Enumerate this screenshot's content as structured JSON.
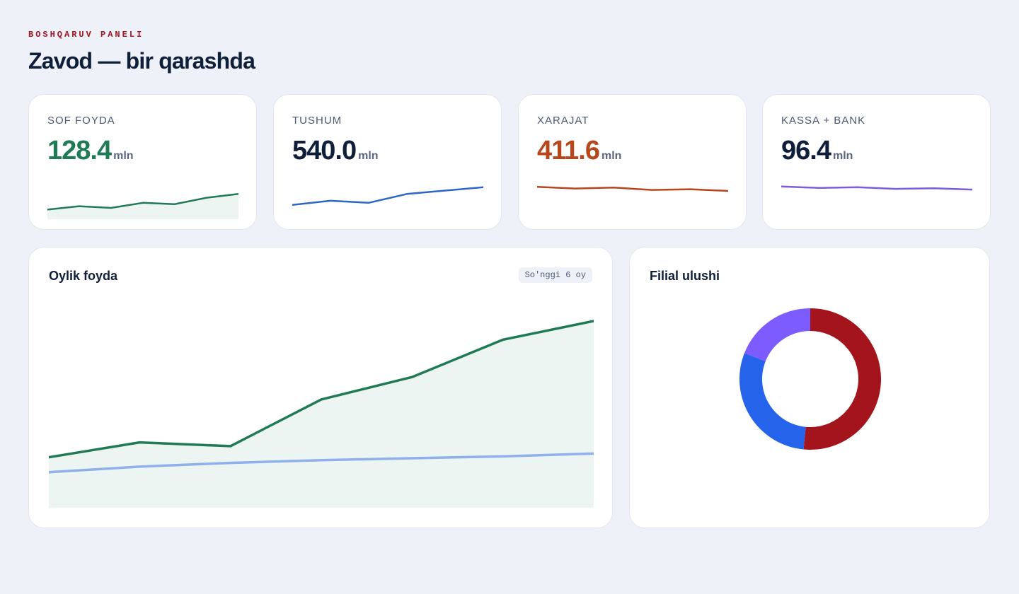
{
  "header": {
    "eyebrow": "BOSHQARUV PANELI",
    "title": "Zavod — bir qarashda"
  },
  "kpis": [
    {
      "label": "SOF FOYDA",
      "value": "128.4",
      "unit": "mln",
      "color": "#1f7a55",
      "fill": true,
      "trend": [
        2,
        3,
        2.5,
        4,
        3.6,
        5.5,
        6.6
      ]
    },
    {
      "label": "TUSHUM",
      "value": "540.0",
      "unit": "mln",
      "color": "#2c66c9",
      "fill": false,
      "trend": [
        3.4,
        4.6,
        4.0,
        6.6,
        7.6,
        8.6
      ]
    },
    {
      "label": "XARAJAT",
      "value": "411.6",
      "unit": "mln",
      "color": "#b8461a",
      "fill": false,
      "trend": [
        8.7,
        8.2,
        8.5,
        7.8,
        8.0,
        7.5
      ]
    },
    {
      "label": "KASSA + BANK",
      "value": "96.4",
      "unit": "mln",
      "color": "#7b5cdb",
      "fill": false,
      "trend": [
        8.8,
        8.4,
        8.6,
        8.1,
        8.3,
        7.9
      ]
    }
  ],
  "kpi_value_colors": [
    "#1f7a55",
    "#0f1f3a",
    "#b8461a",
    "#0f1f3a"
  ],
  "monthly_profit": {
    "title": "Oylik foyda",
    "badge": "So'nggi 6 oy",
    "chart_data": {
      "type": "area",
      "ylim": [
        0,
        100
      ],
      "series": [
        {
          "color": "#1f7a55",
          "fill": true,
          "values": [
            27,
            35,
            33,
            58,
            70,
            90,
            100
          ]
        },
        {
          "color": "#8fb0ea",
          "fill": false,
          "values": [
            19,
            22,
            24,
            25.5,
            26.5,
            27.5,
            29
          ]
        }
      ]
    }
  },
  "branch_share": {
    "title": "Filial ulushi",
    "chart_data": {
      "type": "pie",
      "slices": [
        {
          "value": 51.5,
          "color": "#a3141c"
        },
        {
          "value": 29.5,
          "color": "#2563eb"
        },
        {
          "value": 19.0,
          "color": "#7c5cff"
        }
      ]
    }
  }
}
